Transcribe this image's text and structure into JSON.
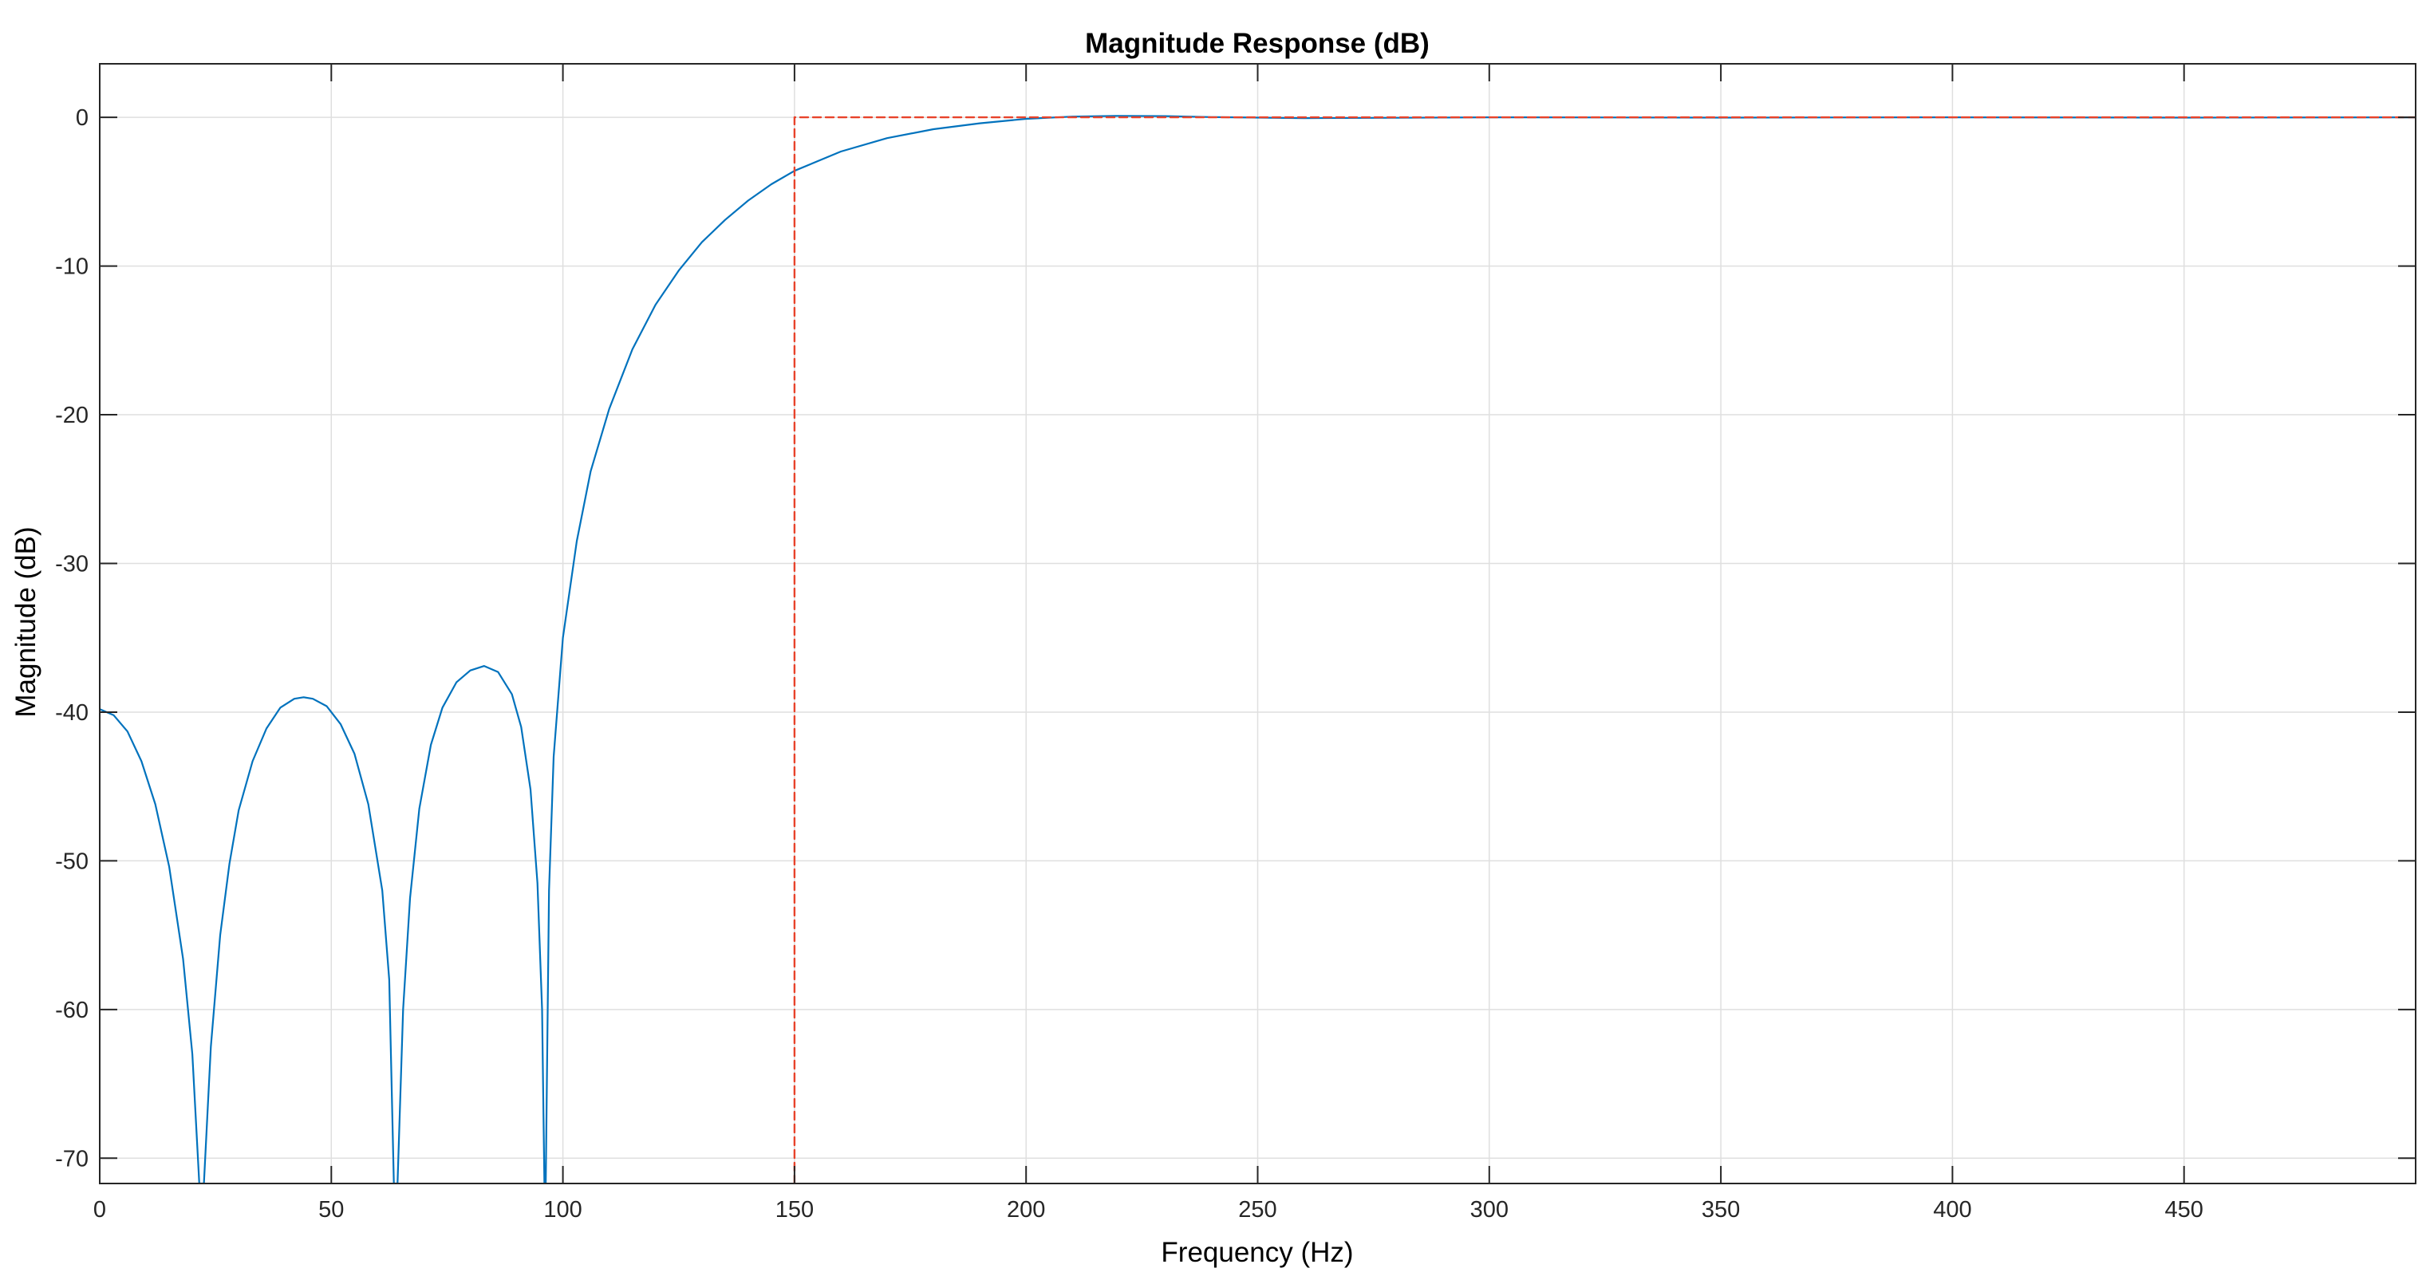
{
  "chart_data": {
    "type": "line",
    "title": "Magnitude Response (dB)",
    "xlabel": "Frequency (Hz)",
    "ylabel": "Magnitude (dB)",
    "xlim": [
      0,
      500
    ],
    "ylim": [
      -71.7,
      3.6
    ],
    "xticks": [
      0,
      50,
      100,
      150,
      200,
      250,
      300,
      350,
      400,
      450
    ],
    "yticks": [
      0,
      -10,
      -20,
      -30,
      -40,
      -50,
      -60,
      -70
    ],
    "grid": true,
    "legend": "none",
    "colors": {
      "response": "#0072BD",
      "mask": "#E8432B",
      "grid": "#DFDFDF",
      "axes": "#262626"
    },
    "series": [
      {
        "style": "solid",
        "color": "#0072BD",
        "points": [
          [
            0,
            -39.8
          ],
          [
            3,
            -40.2
          ],
          [
            6,
            -41.3
          ],
          [
            9,
            -43.3
          ],
          [
            12,
            -46.2
          ],
          [
            15,
            -50.4
          ],
          [
            18,
            -56.6
          ],
          [
            20,
            -63.0
          ],
          [
            21.5,
            -71.7
          ],
          [
            22.5,
            -71.7
          ],
          [
            24,
            -62.5
          ],
          [
            26,
            -55.0
          ],
          [
            28,
            -50.2
          ],
          [
            30,
            -46.6
          ],
          [
            33,
            -43.3
          ],
          [
            36,
            -41.1
          ],
          [
            39,
            -39.7
          ],
          [
            42,
            -39.1
          ],
          [
            44,
            -39.0
          ],
          [
            46,
            -39.1
          ],
          [
            49,
            -39.6
          ],
          [
            52,
            -40.8
          ],
          [
            55,
            -42.8
          ],
          [
            58,
            -46.2
          ],
          [
            61,
            -52.0
          ],
          [
            62.5,
            -58.0
          ],
          [
            63.5,
            -71.7
          ],
          [
            64.3,
            -71.7
          ],
          [
            65.5,
            -60.0
          ],
          [
            67,
            -52.5
          ],
          [
            69,
            -46.5
          ],
          [
            71.5,
            -42.2
          ],
          [
            74,
            -39.7
          ],
          [
            77,
            -38.0
          ],
          [
            80,
            -37.2
          ],
          [
            83,
            -36.9
          ],
          [
            86,
            -37.3
          ],
          [
            89,
            -38.8
          ],
          [
            91,
            -41.0
          ],
          [
            93,
            -45.2
          ],
          [
            94.5,
            -51.5
          ],
          [
            95.5,
            -60.0
          ],
          [
            96,
            -71.7
          ],
          [
            96.3,
            -71.7
          ],
          [
            97,
            -52.0
          ],
          [
            98,
            -43.0
          ],
          [
            100,
            -35.0
          ],
          [
            103,
            -28.5
          ],
          [
            106,
            -23.8
          ],
          [
            110,
            -19.6
          ],
          [
            115,
            -15.6
          ],
          [
            120,
            -12.6
          ],
          [
            125,
            -10.3
          ],
          [
            130,
            -8.4
          ],
          [
            135,
            -6.9
          ],
          [
            140,
            -5.6
          ],
          [
            145,
            -4.5
          ],
          [
            150,
            -3.6
          ],
          [
            160,
            -2.3
          ],
          [
            170,
            -1.4
          ],
          [
            180,
            -0.8
          ],
          [
            190,
            -0.4
          ],
          [
            200,
            -0.1
          ],
          [
            210,
            0.05
          ],
          [
            220,
            0.1
          ],
          [
            230,
            0.08
          ],
          [
            240,
            0.02
          ],
          [
            260,
            -0.05
          ],
          [
            280,
            -0.03
          ],
          [
            300,
            0.0
          ],
          [
            350,
            -0.02
          ],
          [
            400,
            0.0
          ],
          [
            450,
            -0.02
          ],
          [
            500,
            0.0
          ]
        ]
      },
      {
        "style": "dashed",
        "color": "#E8432B",
        "points": [
          [
            150,
            -71.7
          ],
          [
            150,
            0
          ],
          [
            500,
            0
          ]
        ]
      }
    ]
  }
}
